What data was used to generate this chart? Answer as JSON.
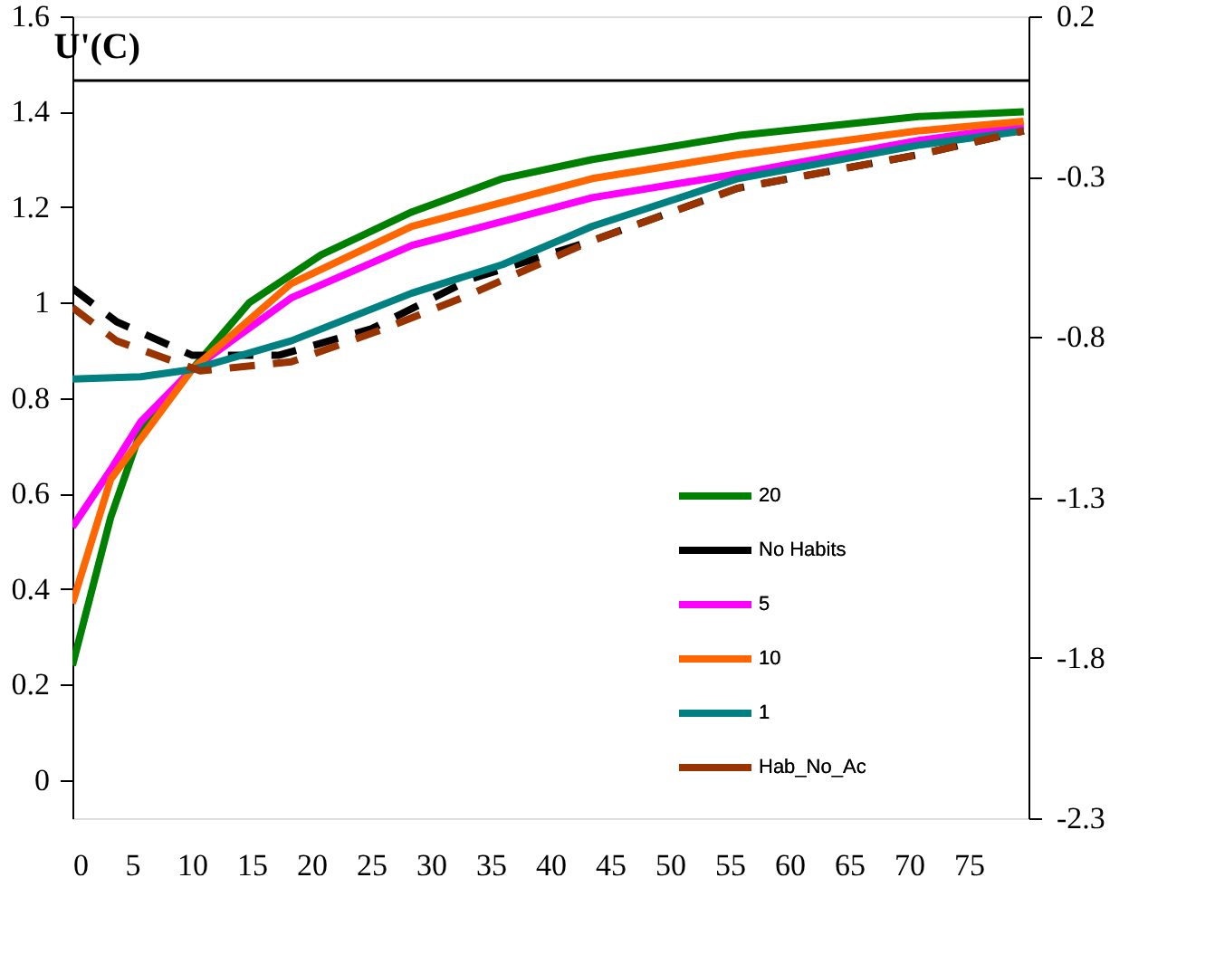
{
  "chart_data": {
    "type": "line",
    "title": "U'(C)",
    "xlim": [
      0,
      80
    ],
    "xticks": [
      0,
      5,
      10,
      15,
      20,
      25,
      30,
      35,
      40,
      45,
      50,
      55,
      60,
      65,
      70,
      75
    ],
    "ylim": [
      -0.08,
      1.6
    ],
    "yticks": [
      0,
      0.2,
      0.4,
      0.6,
      0.8,
      {
        "value": 1,
        "label": "1"
      },
      1.2,
      1.4,
      1.6
    ],
    "y2lim": [
      -2.3,
      0.2
    ],
    "y2ticks": [
      -2.3,
      -1.8,
      -1.3,
      -0.8,
      -0.3,
      0.2
    ],
    "ref_lines": [
      {
        "axis": "y2",
        "value": 0,
        "color": "#000000"
      }
    ],
    "grid": false,
    "legend": "bottom right",
    "series": [
      {
        "name": "20",
        "color": "#008000",
        "line_style": "solid",
        "x": [
          0,
          3.2,
          5.7,
          10,
          14.8,
          20.8,
          28.4,
          36,
          43.5,
          55.7,
          70.8,
          79.6
        ],
        "values": [
          0.24,
          0.55,
          0.73,
          0.86,
          1.0,
          1.1,
          1.19,
          1.26,
          1.3,
          1.35,
          1.39,
          1.4
        ]
      },
      {
        "name": "No Habits",
        "color": "#000000",
        "line_style": "dashed",
        "x": [
          0,
          3.7,
          10,
          17.3,
          25,
          33.4,
          43.5,
          55.7,
          70.8,
          79.6
        ],
        "values": [
          1.03,
          0.96,
          0.89,
          0.89,
          0.945,
          1.05,
          1.13,
          1.24,
          1.31,
          1.36
        ]
      },
      {
        "name": "5",
        "color": "#ff00ff",
        "line_style": "solid",
        "x": [
          0,
          3.2,
          5.7,
          10,
          18.3,
          28.4,
          43.5,
          55.7,
          70.8,
          79.6
        ],
        "values": [
          0.53,
          0.65,
          0.75,
          0.86,
          1.01,
          1.12,
          1.22,
          1.27,
          1.34,
          1.37
        ]
      },
      {
        "name": "10",
        "color": "#ff6600",
        "line_style": "solid",
        "x": [
          0,
          3.2,
          10,
          18.3,
          28.4,
          43.5,
          55.7,
          70.8,
          79.6
        ],
        "values": [
          0.37,
          0.63,
          0.86,
          1.04,
          1.16,
          1.26,
          1.31,
          1.36,
          1.38
        ]
      },
      {
        "name": "1",
        "color": "#008080",
        "line_style": "solid",
        "x": [
          0,
          5.7,
          10,
          18.3,
          28.4,
          36,
          43.5,
          55.7,
          70.8,
          79.6
        ],
        "values": [
          0.84,
          0.845,
          0.86,
          0.92,
          1.02,
          1.08,
          1.16,
          1.26,
          1.33,
          1.36
        ]
      },
      {
        "name": "Hab_No_Ac",
        "color": "#993300",
        "line_style": "dashed",
        "x": [
          0,
          3.7,
          10.7,
          18.3,
          25.5,
          32.6,
          43.5,
          55.7,
          70.8,
          79.6
        ],
        "values": [
          0.99,
          0.92,
          0.857,
          0.876,
          0.94,
          1.01,
          1.13,
          1.24,
          1.31,
          1.36
        ]
      }
    ]
  }
}
